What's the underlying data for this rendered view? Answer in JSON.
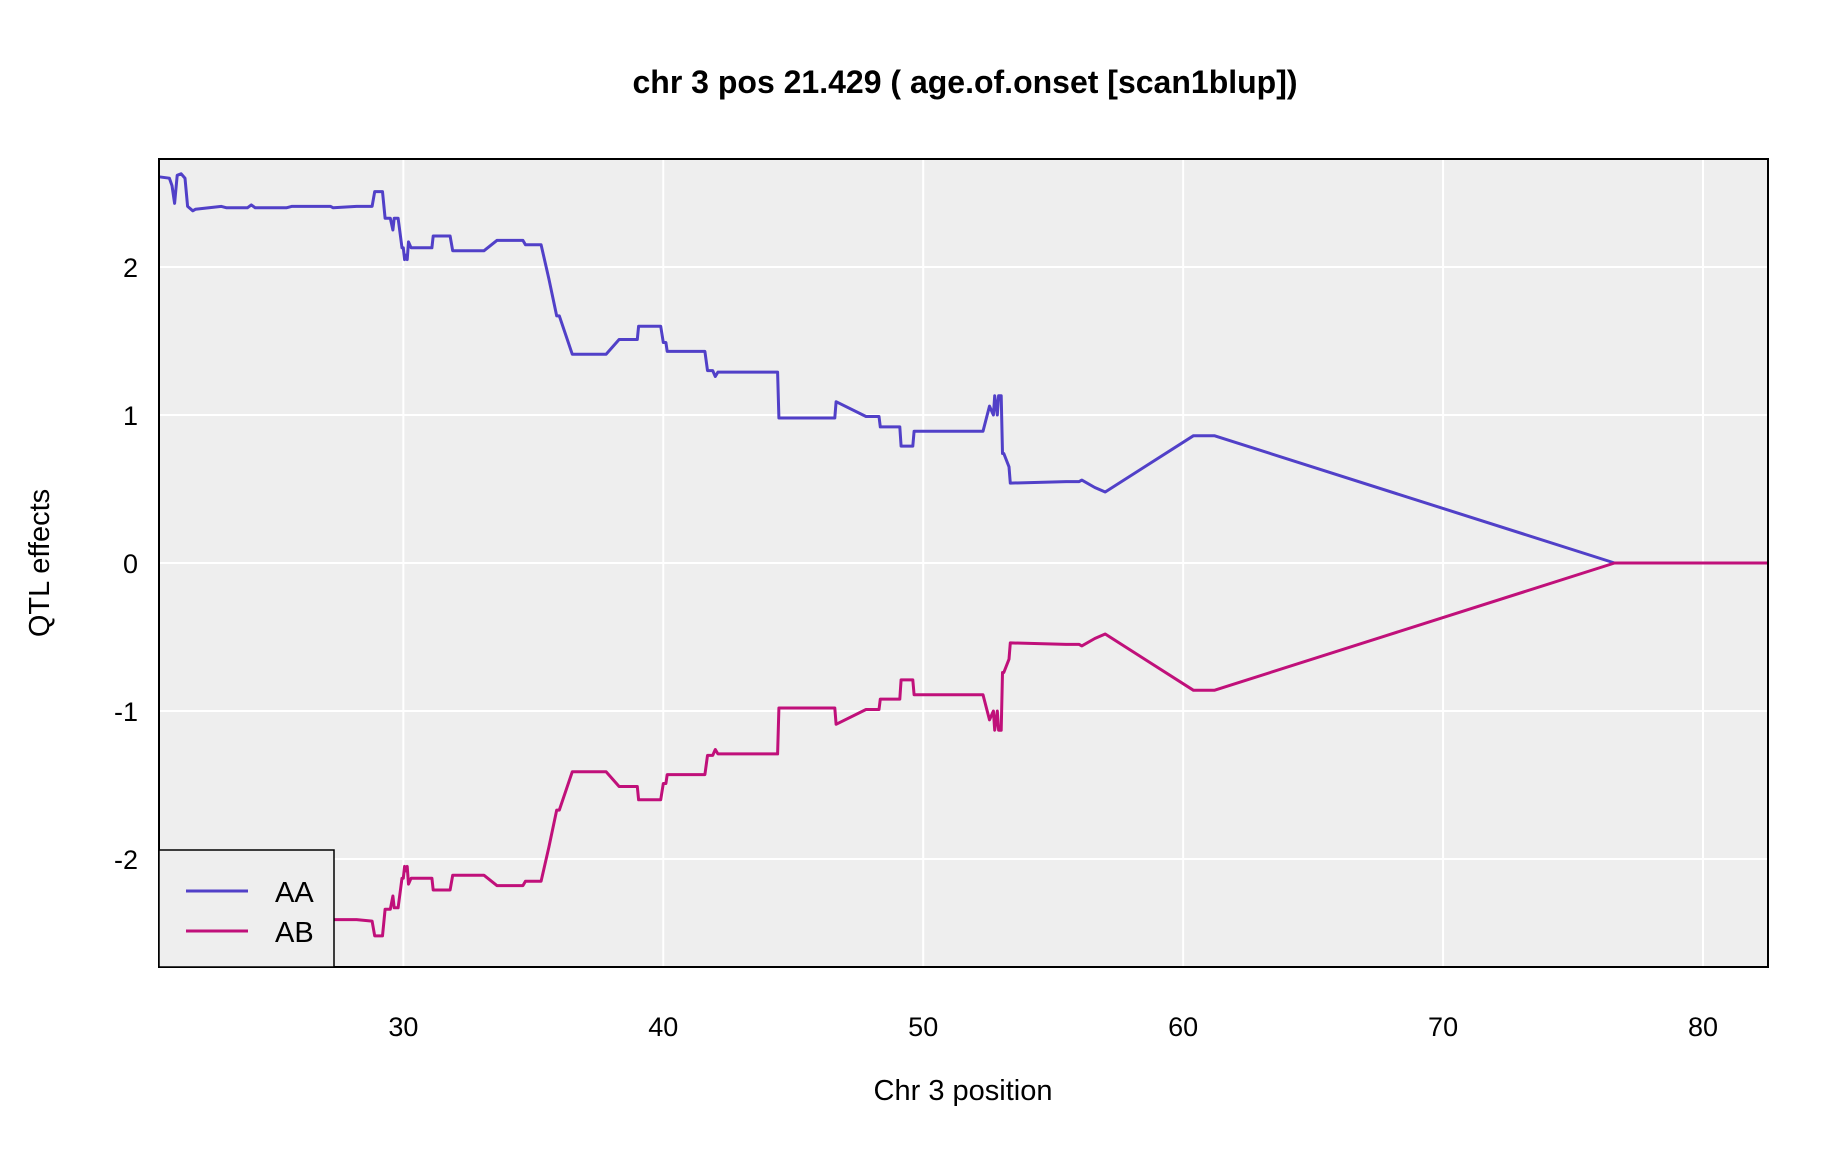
{
  "chart_data": {
    "type": "line",
    "title": "chr 3 pos 21.429 ( age.of.onset  [scan1blup])",
    "xlabel": "Chr 3 position",
    "ylabel": "QTL effects",
    "xlim": [
      20.6,
      82.5
    ],
    "ylim": [
      -2.73,
      2.73
    ],
    "xticks": [
      30,
      40,
      50,
      60,
      70,
      80
    ],
    "yticks": [
      -2,
      -1,
      0,
      1,
      2
    ],
    "grid": true,
    "legend_position": "bottom-left",
    "background": "#eeeeee",
    "gridline_color": "#ffffff",
    "series": [
      {
        "name": "AA",
        "color": "#5140c8",
        "points": [
          [
            20.6,
            2.61
          ],
          [
            21.0,
            2.6
          ],
          [
            21.1,
            2.55
          ],
          [
            21.2,
            2.43
          ],
          [
            21.3,
            2.62
          ],
          [
            21.45,
            2.63
          ],
          [
            21.6,
            2.6
          ],
          [
            21.7,
            2.41
          ],
          [
            21.9,
            2.38
          ],
          [
            22.0,
            2.39
          ],
          [
            23.0,
            2.41
          ],
          [
            23.2,
            2.4
          ],
          [
            24.0,
            2.4
          ],
          [
            24.15,
            2.42
          ],
          [
            24.3,
            2.4
          ],
          [
            25.5,
            2.4
          ],
          [
            25.7,
            2.41
          ],
          [
            27.2,
            2.41
          ],
          [
            27.3,
            2.4
          ],
          [
            28.2,
            2.41
          ],
          [
            28.8,
            2.41
          ],
          [
            28.9,
            2.51
          ],
          [
            29.2,
            2.51
          ],
          [
            29.3,
            2.33
          ],
          [
            29.5,
            2.33
          ],
          [
            29.6,
            2.25
          ],
          [
            29.65,
            2.33
          ],
          [
            29.8,
            2.33
          ],
          [
            29.95,
            2.13
          ],
          [
            30.0,
            2.13
          ],
          [
            30.05,
            2.05
          ],
          [
            30.1,
            2.08
          ],
          [
            30.15,
            2.05
          ],
          [
            30.2,
            2.17
          ],
          [
            30.3,
            2.13
          ],
          [
            31.1,
            2.13
          ],
          [
            31.15,
            2.21
          ],
          [
            31.8,
            2.21
          ],
          [
            31.9,
            2.11
          ],
          [
            33.1,
            2.11
          ],
          [
            33.6,
            2.18
          ],
          [
            34.6,
            2.18
          ],
          [
            34.7,
            2.15
          ],
          [
            35.3,
            2.15
          ],
          [
            35.6,
            1.92
          ],
          [
            35.9,
            1.67
          ],
          [
            36.0,
            1.67
          ],
          [
            36.5,
            1.41
          ],
          [
            37.8,
            1.41
          ],
          [
            38.3,
            1.51
          ],
          [
            39.0,
            1.51
          ],
          [
            39.05,
            1.6
          ],
          [
            39.9,
            1.6
          ],
          [
            40.0,
            1.49
          ],
          [
            40.1,
            1.49
          ],
          [
            40.15,
            1.43
          ],
          [
            41.6,
            1.43
          ],
          [
            41.7,
            1.3
          ],
          [
            41.9,
            1.3
          ],
          [
            42.0,
            1.26
          ],
          [
            42.1,
            1.29
          ],
          [
            44.4,
            1.29
          ],
          [
            44.45,
            0.98
          ],
          [
            46.6,
            0.98
          ],
          [
            46.65,
            1.09
          ],
          [
            47.8,
            0.99
          ],
          [
            48.3,
            0.99
          ],
          [
            48.35,
            0.92
          ],
          [
            49.1,
            0.92
          ],
          [
            49.15,
            0.79
          ],
          [
            49.6,
            0.79
          ],
          [
            49.65,
            0.89
          ],
          [
            52.3,
            0.89
          ],
          [
            52.55,
            1.06
          ],
          [
            52.7,
            1.0
          ],
          [
            52.75,
            1.13
          ],
          [
            52.85,
            1.0
          ],
          [
            52.9,
            1.13
          ],
          [
            53.0,
            1.13
          ],
          [
            53.05,
            0.74
          ],
          [
            53.1,
            0.74
          ],
          [
            53.3,
            0.65
          ],
          [
            53.35,
            0.54
          ],
          [
            55.5,
            0.55
          ],
          [
            56.0,
            0.55
          ],
          [
            56.1,
            0.56
          ],
          [
            56.6,
            0.51
          ],
          [
            57.0,
            0.48
          ],
          [
            60.4,
            0.86
          ],
          [
            61.2,
            0.86
          ],
          [
            76.6,
            0.0
          ],
          [
            82.5,
            0.0
          ]
        ]
      },
      {
        "name": "AB",
        "color": "#c0107a",
        "points": [
          [
            27.0,
            -2.42
          ],
          [
            27.2,
            -2.41
          ],
          [
            28.2,
            -2.41
          ],
          [
            28.8,
            -2.42
          ],
          [
            28.9,
            -2.52
          ],
          [
            29.2,
            -2.52
          ],
          [
            29.3,
            -2.34
          ],
          [
            29.5,
            -2.34
          ],
          [
            29.6,
            -2.25
          ],
          [
            29.65,
            -2.33
          ],
          [
            29.8,
            -2.33
          ],
          [
            29.95,
            -2.13
          ],
          [
            30.0,
            -2.13
          ],
          [
            30.05,
            -2.05
          ],
          [
            30.1,
            -2.08
          ],
          [
            30.15,
            -2.05
          ],
          [
            30.2,
            -2.17
          ],
          [
            30.3,
            -2.13
          ],
          [
            31.1,
            -2.13
          ],
          [
            31.15,
            -2.21
          ],
          [
            31.8,
            -2.21
          ],
          [
            31.9,
            -2.11
          ],
          [
            33.1,
            -2.11
          ],
          [
            33.6,
            -2.18
          ],
          [
            34.6,
            -2.18
          ],
          [
            34.7,
            -2.15
          ],
          [
            35.3,
            -2.15
          ],
          [
            35.6,
            -1.92
          ],
          [
            35.9,
            -1.67
          ],
          [
            36.0,
            -1.67
          ],
          [
            36.5,
            -1.41
          ],
          [
            37.8,
            -1.41
          ],
          [
            38.3,
            -1.51
          ],
          [
            39.0,
            -1.51
          ],
          [
            39.05,
            -1.6
          ],
          [
            39.9,
            -1.6
          ],
          [
            40.0,
            -1.49
          ],
          [
            40.1,
            -1.49
          ],
          [
            40.15,
            -1.43
          ],
          [
            41.6,
            -1.43
          ],
          [
            41.7,
            -1.3
          ],
          [
            41.9,
            -1.3
          ],
          [
            42.0,
            -1.26
          ],
          [
            42.1,
            -1.29
          ],
          [
            44.4,
            -1.29
          ],
          [
            44.45,
            -0.98
          ],
          [
            46.6,
            -0.98
          ],
          [
            46.65,
            -1.09
          ],
          [
            47.8,
            -0.99
          ],
          [
            48.3,
            -0.99
          ],
          [
            48.35,
            -0.92
          ],
          [
            49.1,
            -0.92
          ],
          [
            49.15,
            -0.79
          ],
          [
            49.6,
            -0.79
          ],
          [
            49.65,
            -0.89
          ],
          [
            52.3,
            -0.89
          ],
          [
            52.55,
            -1.06
          ],
          [
            52.7,
            -1.0
          ],
          [
            52.75,
            -1.13
          ],
          [
            52.85,
            -1.0
          ],
          [
            52.9,
            -1.13
          ],
          [
            53.0,
            -1.13
          ],
          [
            53.05,
            -0.74
          ],
          [
            53.1,
            -0.74
          ],
          [
            53.3,
            -0.65
          ],
          [
            53.35,
            -0.54
          ],
          [
            55.5,
            -0.55
          ],
          [
            56.0,
            -0.55
          ],
          [
            56.1,
            -0.56
          ],
          [
            56.6,
            -0.51
          ],
          [
            57.0,
            -0.48
          ],
          [
            60.4,
            -0.86
          ],
          [
            61.2,
            -0.86
          ],
          [
            76.6,
            0.0
          ],
          [
            82.5,
            0.0
          ]
        ]
      }
    ]
  }
}
